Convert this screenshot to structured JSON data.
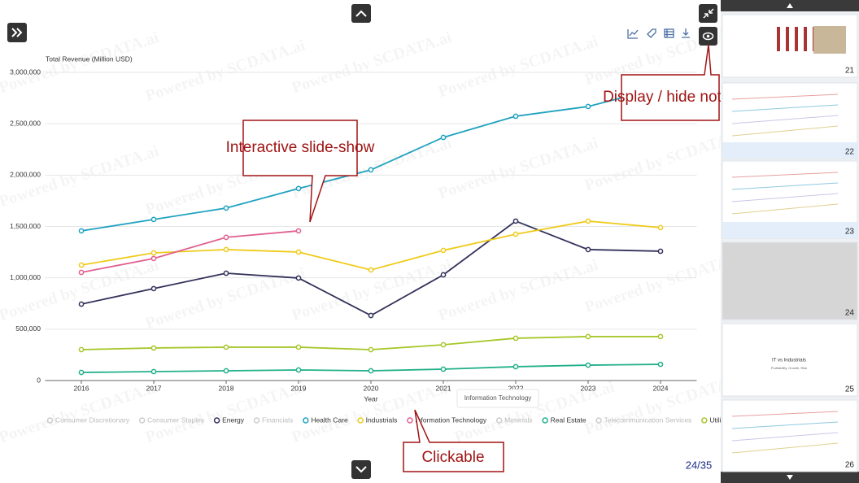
{
  "chart_data": {
    "type": "line",
    "y_label": "Total Revenue (Million USD)",
    "x_label": "Year",
    "categories": [
      "2016",
      "2017",
      "2018",
      "2019",
      "2020",
      "2021",
      "2022",
      "2023",
      "2024"
    ],
    "ylim": [
      0,
      3000000
    ],
    "yticks": [
      0,
      {
        "value": 500000,
        "label": "500,000"
      },
      {
        "value": 1000000,
        "label": "1,000,000"
      },
      {
        "value": 1500000,
        "label": "1,500,000"
      },
      {
        "value": 2000000,
        "label": "2,000,000"
      },
      {
        "value": 2500000,
        "label": "2,500,000"
      },
      {
        "value": 3000000,
        "label": "3,000,000"
      }
    ],
    "grid": true,
    "series": [
      {
        "name": "Consumer Discretionary",
        "color": "#cccccc",
        "visible": false,
        "values": [
          null,
          null,
          null,
          null,
          null,
          null,
          null,
          null,
          null
        ]
      },
      {
        "name": "Consumer Staples",
        "color": "#cccccc",
        "visible": false,
        "values": [
          null,
          null,
          null,
          null,
          null,
          null,
          null,
          null,
          null
        ]
      },
      {
        "name": "Energy",
        "color": "#33315a",
        "visible": true,
        "values": [
          744000,
          895000,
          1045000,
          998000,
          633000,
          1029000,
          1552000,
          1275000,
          1259000
        ]
      },
      {
        "name": "Financials",
        "color": "#cccccc",
        "visible": false,
        "values": [
          null,
          null,
          null,
          null,
          null,
          null,
          null,
          null,
          null
        ]
      },
      {
        "name": "Health Care",
        "color": "#1fa2c0",
        "visible": true,
        "values": [
          1457000,
          1568000,
          1679000,
          1869000,
          2051000,
          2367000,
          2573000,
          2668000,
          2850000
        ]
      },
      {
        "name": "Industrials",
        "color": "#efcb1c",
        "visible": true,
        "values": [
          1124000,
          1243000,
          1275000,
          1251000,
          1077000,
          1267000,
          1425000,
          1552000,
          1489000
        ]
      },
      {
        "name": "Information Technology",
        "color": "#e06090",
        "visible": true,
        "values": [
          1053000,
          1188000,
          1394000,
          1457000,
          null,
          null,
          null,
          null,
          null
        ]
      },
      {
        "name": "Materials",
        "color": "#cccccc",
        "visible": false,
        "values": [
          null,
          null,
          null,
          null,
          null,
          null,
          null,
          null,
          null
        ]
      },
      {
        "name": "Real Estate",
        "color": "#22b08a",
        "visible": true,
        "values": [
          79000,
          87000,
          95000,
          103000,
          95000,
          111000,
          135000,
          150000,
          158000
        ]
      },
      {
        "name": "Telecommunication Services",
        "color": "#cccccc",
        "visible": false,
        "values": [
          null,
          null,
          null,
          null,
          null,
          null,
          null,
          null,
          null
        ]
      },
      {
        "name": "Utilities",
        "color": "#a6c72a",
        "visible": true,
        "values": [
          301000,
          317000,
          325000,
          325000,
          301000,
          348000,
          412000,
          428000,
          428000
        ]
      }
    ],
    "tooltip": "Information Technology"
  },
  "watermark": "Powered by SCDATA.ai",
  "callouts": [
    "Interactive slide-show",
    "Display / hide notes",
    "Clickable"
  ],
  "page_indicator": "24/35",
  "thumbnails": [
    {
      "number": 21
    },
    {
      "number": 22
    },
    {
      "number": 23
    },
    {
      "number": 24
    },
    {
      "number": 25,
      "title": "IT vs Industrials",
      "subtitle": "Profitability, Growth, Risk"
    },
    {
      "number": 26
    }
  ]
}
